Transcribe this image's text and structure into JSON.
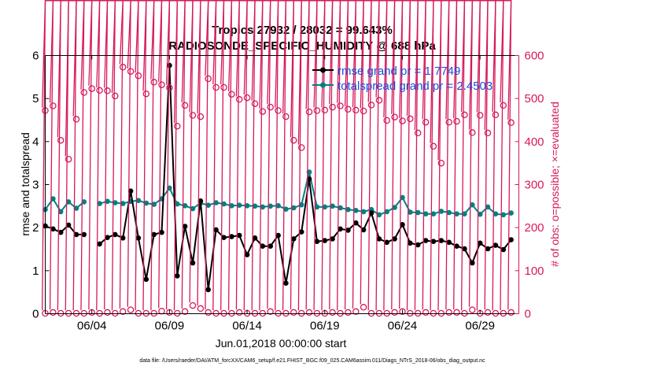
{
  "colors": {
    "rmse": "#000000",
    "spread": "#008080",
    "obs": "#d6185c",
    "legend_text": "#1a4fdc",
    "frame": "#000000"
  },
  "chart_data": {
    "type": "line",
    "title": "Tropics 27932 / 28032 = 99.643%",
    "subtitle": "RADIOSONDE_SPECIFIC_HUMIDITY @ 688 hPa",
    "xlabel": "Jun.01,2018 00:00:00 start",
    "ylabel": "rmse and totalspread",
    "y2label": "# of obs: o=possible; ×=evaluated",
    "xlim": [
      1,
      31.5
    ],
    "ylim": [
      0,
      6
    ],
    "y2lim": [
      0,
      600
    ],
    "xticks": [
      {
        "x": 4,
        "label": "06/04"
      },
      {
        "x": 9,
        "label": "06/09"
      },
      {
        "x": 14,
        "label": "06/14"
      },
      {
        "x": 19,
        "label": "06/19"
      },
      {
        "x": 24,
        "label": "06/24"
      },
      {
        "x": 29,
        "label": "06/29"
      }
    ],
    "yticks": [
      "0",
      "1",
      "2",
      "3",
      "4",
      "5",
      "6"
    ],
    "y2ticks": [
      "0",
      "100",
      "200",
      "300",
      "400",
      "500",
      "600"
    ],
    "legend": [
      {
        "name": "rmse grand pr = 1.7749",
        "key": "rmse"
      },
      {
        "name": "totalspread grand pr = 2.4503",
        "key": "spread"
      }
    ],
    "footnote": "data file: /Users/raeder/DAI/ATM_forcXX/CAM6_setup/f.e21.FHIST_BGC.f09_025.CAM6assim.011/Diags_NTrS_2018-06/obs_diag_output.nc",
    "x": [
      1.0,
      1.5,
      2.0,
      2.5,
      3.0,
      3.5,
      4.0,
      4.5,
      5.0,
      5.5,
      6.0,
      6.5,
      7.0,
      7.5,
      8.0,
      8.5,
      9.0,
      9.5,
      10.0,
      10.5,
      11.0,
      11.5,
      12.0,
      12.5,
      13.0,
      13.5,
      14.0,
      14.5,
      15.0,
      15.5,
      16.0,
      16.5,
      17.0,
      17.5,
      18.0,
      18.5,
      19.0,
      19.5,
      20.0,
      20.5,
      21.0,
      21.5,
      22.0,
      22.5,
      23.0,
      23.5,
      24.0,
      24.5,
      25.0,
      25.5,
      26.0,
      26.5,
      27.0,
      27.5,
      28.0,
      28.5,
      29.0,
      29.5,
      30.0,
      30.5,
      31.0
    ],
    "series": [
      {
        "name": "rmse",
        "values": [
          2.04,
          1.97,
          1.89,
          2.06,
          1.84,
          1.84,
          null,
          1.62,
          1.77,
          1.84,
          1.76,
          2.85,
          1.76,
          0.8,
          1.84,
          1.89,
          5.77,
          0.88,
          2.03,
          1.18,
          2.62,
          0.56,
          1.95,
          1.77,
          1.79,
          1.82,
          1.37,
          1.76,
          1.57,
          1.57,
          1.82,
          0.71,
          1.74,
          1.9,
          3.13,
          1.68,
          1.7,
          1.74,
          1.97,
          1.94,
          2.11,
          1.95,
          2.34,
          1.74,
          1.66,
          1.74,
          2.07,
          1.64,
          1.6,
          1.7,
          1.68,
          1.7,
          1.66,
          1.57,
          1.51,
          1.18,
          1.64,
          1.51,
          1.59,
          1.49,
          1.72
        ]
      },
      {
        "name": "totalspread",
        "values": [
          2.42,
          2.67,
          2.37,
          2.6,
          2.45,
          2.6,
          null,
          2.56,
          2.61,
          2.58,
          2.56,
          2.61,
          2.63,
          2.57,
          2.54,
          2.67,
          2.92,
          2.55,
          2.51,
          2.44,
          2.57,
          2.52,
          2.58,
          2.55,
          2.51,
          2.52,
          2.51,
          2.5,
          2.48,
          2.5,
          2.51,
          2.43,
          2.46,
          2.53,
          3.29,
          2.48,
          2.48,
          2.5,
          2.46,
          2.42,
          2.4,
          2.37,
          2.42,
          2.3,
          2.37,
          2.47,
          2.7,
          2.36,
          2.35,
          2.32,
          2.32,
          2.38,
          2.35,
          2.32,
          2.32,
          2.53,
          2.31,
          2.48,
          2.32,
          2.3,
          2.34
        ]
      },
      {
        "name": "obs_possible",
        "axis": "right",
        "values": [
          472,
          483,
          403,
          359,
          452,
          514,
          523,
          519,
          518,
          506,
          573,
          563,
          553,
          511,
          538,
          532,
          525,
          436,
          484,
          461,
          458,
          546,
          526,
          526,
          510,
          498,
          502,
          488,
          470,
          480,
          472,
          458,
          403,
          386,
          469,
          472,
          473,
          480,
          483,
          475,
          473,
          471,
          485,
          496,
          449,
          457,
          448,
          453,
          420,
          445,
          389,
          350,
          445,
          447,
          462,
          421,
          461,
          420,
          462,
          484,
          444
        ]
      },
      {
        "name": "obs_evaluated",
        "axis": "right",
        "values": [
          1,
          3,
          1,
          1,
          1,
          1,
          3,
          1,
          3,
          1,
          5,
          9,
          1,
          1,
          1,
          6,
          3,
          1,
          5,
          19,
          12,
          3,
          1,
          1,
          1,
          3,
          1,
          1,
          1,
          5,
          1,
          1,
          3,
          1,
          3,
          1,
          1,
          3,
          1,
          3,
          5,
          15,
          1,
          1,
          1,
          3,
          5,
          1,
          1,
          3,
          1,
          1,
          3,
          3,
          1,
          9,
          1,
          3,
          1,
          1,
          3
        ]
      }
    ]
  }
}
